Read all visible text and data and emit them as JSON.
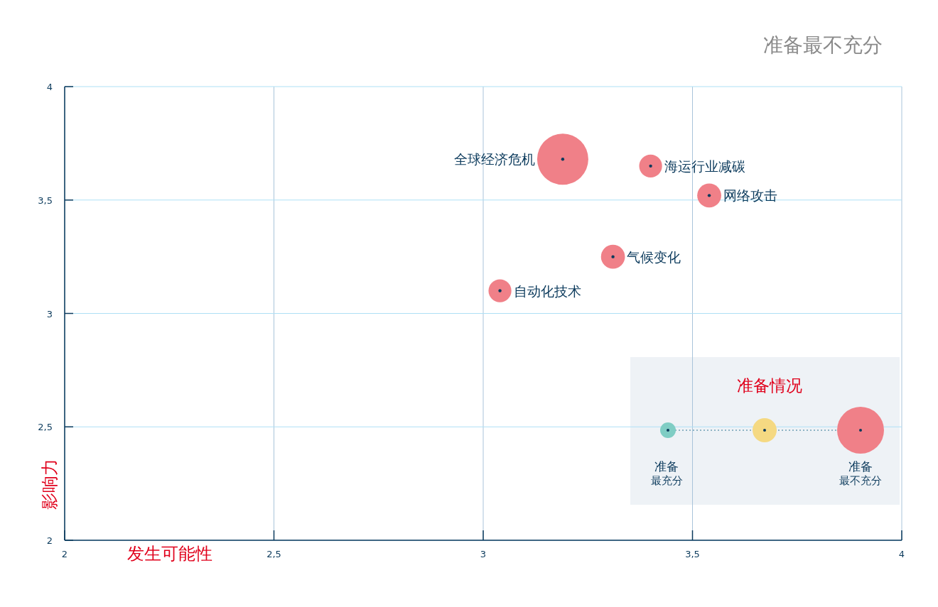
{
  "chart_data": {
    "type": "bubble",
    "title": "准备最不充分",
    "xlabel": "发生可能性",
    "ylabel": "影响力",
    "legend_title": "准备情况",
    "annotations": [
      "准备",
      "最充分",
      "准备",
      "最不充分"
    ],
    "xlim": [
      2,
      4
    ],
    "ylim": [
      2,
      4
    ],
    "xticks": [
      {
        "value": 2,
        "label": "2"
      },
      {
        "value": 2.5,
        "label": "2,5"
      },
      {
        "value": 3,
        "label": "3"
      },
      {
        "value": 3.5,
        "label": "3,5"
      },
      {
        "value": 4,
        "label": "4"
      }
    ],
    "yticks": [
      {
        "value": 2,
        "label": "2"
      },
      {
        "value": 2.5,
        "label": "2,5"
      },
      {
        "value": 3,
        "label": "3"
      },
      {
        "value": 3.5,
        "label": "3,5"
      },
      {
        "value": 4,
        "label": "4"
      }
    ],
    "grid": true,
    "series": [
      {
        "name": "全球经济危机",
        "color": "#f08088",
        "x": [
          3.19
        ],
        "values": [
          3.68
        ],
        "sizes": [
          1
        ]
      },
      {
        "name": "海运行业减碳",
        "color": "#f08088",
        "x": [
          3.4
        ],
        "values": [
          3.65
        ],
        "sizes": [
          0.2
        ]
      },
      {
        "name": "网络攻击",
        "color": "#f08088",
        "x": [
          3.54
        ],
        "values": [
          3.52
        ],
        "sizes": [
          0.22
        ]
      },
      {
        "name": "气候变化",
        "color": "#f08088",
        "x": [
          3.31
        ],
        "values": [
          3.25
        ],
        "sizes": [
          0.22
        ]
      },
      {
        "name": "自动化技术",
        "color": "#f08088",
        "x": [
          3.04
        ],
        "values": [
          3.1
        ],
        "sizes": [
          0.2
        ]
      }
    ]
  }
}
